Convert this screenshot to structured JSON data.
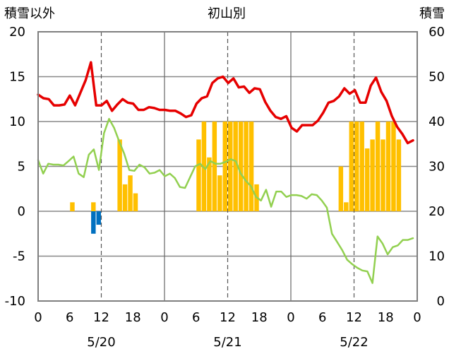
{
  "chart_data": {
    "type": "bar+line",
    "title": "初山別",
    "left_axis_label": "積雪以外",
    "right_axis_label": "積雪",
    "ylim_left": [
      -10,
      20
    ],
    "ylim_right": [
      0,
      60
    ],
    "yticks_left": [
      "20",
      "15",
      "10",
      "5",
      "0",
      "-5",
      "-10"
    ],
    "yticks_right": [
      "60",
      "50",
      "40",
      "30",
      "20",
      "10",
      "0"
    ],
    "xtick_labels": [
      "0",
      "6",
      "12",
      "18",
      "0",
      "6",
      "12",
      "18",
      "0",
      "6",
      "12",
      "18",
      "0"
    ],
    "date_labels": [
      "5/20",
      "5/21",
      "5/22"
    ],
    "grid": "dashed vertical at 12h, solid vertical at day boundaries",
    "colors": {
      "red_line": "#e60000",
      "green_line": "#92d050",
      "bar_positive": "#ffc000",
      "bar_negative": "#0070c0",
      "frame": "#7f7f7f"
    },
    "series": [
      {
        "style": "line",
        "color": "#e60000",
        "axis": "left",
        "values": [
          13.0,
          12.6,
          12.5,
          11.8,
          11.8,
          11.9,
          12.9,
          11.8,
          13.2,
          14.6,
          16.6,
          11.8,
          11.8,
          12.3,
          11.2,
          11.9,
          12.5,
          12.1,
          12.0,
          11.3,
          11.3,
          11.6,
          11.5,
          11.3,
          11.3,
          11.2,
          11.2,
          10.9,
          10.5,
          10.7,
          12.0,
          12.6,
          12.8,
          14.3,
          14.8,
          15.0,
          14.3,
          14.8,
          13.8,
          13.9,
          13.2,
          13.7,
          13.6,
          12.2,
          11.2,
          10.5,
          10.3,
          10.6,
          9.3,
          8.9,
          9.6,
          9.6,
          9.6,
          10.1,
          11.0,
          12.1,
          12.3,
          12.8,
          13.7,
          13.1,
          13.5,
          12.1,
          12.1,
          14.0,
          14.9,
          13.3,
          12.3,
          10.6,
          9.4,
          8.6,
          7.6,
          7.9
        ]
      },
      {
        "style": "line",
        "color": "#92d050",
        "axis": "left",
        "values": [
          5.7,
          4.2,
          5.3,
          5.2,
          5.2,
          5.1,
          5.6,
          6.1,
          4.2,
          3.8,
          6.3,
          6.9,
          4.6,
          8.7,
          10.3,
          9.3,
          7.8,
          6.4,
          4.6,
          4.5,
          5.2,
          4.9,
          4.2,
          4.3,
          4.6,
          3.9,
          4.2,
          3.7,
          2.7,
          2.6,
          3.8,
          5.0,
          5.3,
          4.7,
          5.6,
          5.3,
          5.3,
          5.5,
          5.8,
          5.6,
          4.2,
          3.4,
          2.8,
          1.6,
          1.2,
          2.4,
          0.5,
          2.2,
          2.2,
          1.6,
          1.8,
          1.8,
          1.7,
          1.4,
          1.9,
          1.8,
          1.2,
          0.4,
          -2.5,
          -3.4,
          -4.3,
          -5.4,
          -5.9,
          -6.3,
          -6.6,
          -6.7,
          -8.0,
          -2.8,
          -3.6,
          -4.8,
          -4.0,
          -3.8,
          -3.2,
          -3.2,
          -3.0
        ]
      },
      {
        "style": "bar",
        "axis": "left",
        "positive_color": "#ffc000",
        "negative_color": "#0070c0",
        "bars": [
          {
            "h": 6,
            "v": 1.0
          },
          {
            "h": 10,
            "v": 1.0
          },
          {
            "h": 10,
            "v": -2.5
          },
          {
            "h": 11,
            "v": -1.5
          },
          {
            "h": 15,
            "v": 8.0
          },
          {
            "h": 16,
            "v": 3.0
          },
          {
            "h": 17,
            "v": 4.0
          },
          {
            "h": 18,
            "v": 2.0
          },
          {
            "h": 30,
            "v": 8.0
          },
          {
            "h": 31,
            "v": 10.0
          },
          {
            "h": 32,
            "v": 6.0
          },
          {
            "h": 33,
            "v": 10.0
          },
          {
            "h": 34,
            "v": 4.0
          },
          {
            "h": 35,
            "v": 10.0
          },
          {
            "h": 36,
            "v": 10.0
          },
          {
            "h": 37,
            "v": 10.0
          },
          {
            "h": 38,
            "v": 10.0
          },
          {
            "h": 39,
            "v": 10.0
          },
          {
            "h": 40,
            "v": 10.0
          },
          {
            "h": 41,
            "v": 3.0
          },
          {
            "h": 57,
            "v": 5.0
          },
          {
            "h": 58,
            "v": 1.0
          },
          {
            "h": 59,
            "v": 10.0
          },
          {
            "h": 60,
            "v": 10.0
          },
          {
            "h": 61,
            "v": 10.0
          },
          {
            "h": 62,
            "v": 7.0
          },
          {
            "h": 63,
            "v": 8.0
          },
          {
            "h": 64,
            "v": 10.0
          },
          {
            "h": 65,
            "v": 8.0
          },
          {
            "h": 66,
            "v": 10.0
          },
          {
            "h": 67,
            "v": 10.0
          },
          {
            "h": 68,
            "v": 8.0
          }
        ]
      }
    ]
  }
}
